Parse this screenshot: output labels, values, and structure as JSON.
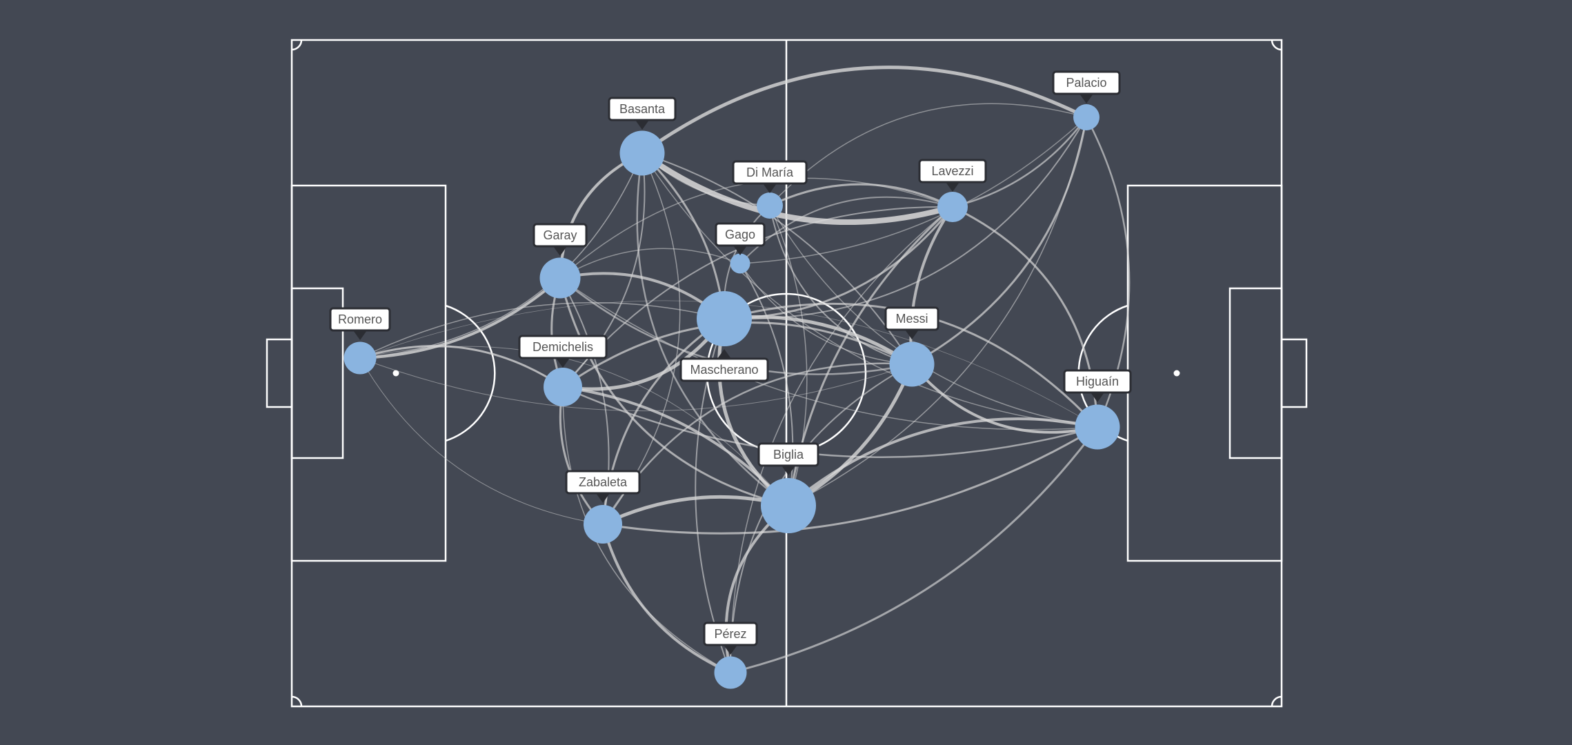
{
  "colors": {
    "background": "#434853",
    "pitch_lines": "#ffffff",
    "node_fill": "#8ab4e0",
    "link_stroke": "#d9d9d9",
    "label_border": "#2b2d33",
    "label_text": "#555555"
  },
  "players": [
    {
      "id": "romero",
      "name": "Romero",
      "importance": 0.45
    },
    {
      "id": "basanta",
      "name": "Basanta",
      "importance": 0.75
    },
    {
      "id": "garay",
      "name": "Garay",
      "importance": 0.65
    },
    {
      "id": "demichelis",
      "name": "Demichelis",
      "importance": 0.6
    },
    {
      "id": "zabaleta",
      "name": "Zabaleta",
      "importance": 0.6
    },
    {
      "id": "mascherano",
      "name": "Mascherano",
      "importance": 1.0
    },
    {
      "id": "gago",
      "name": "Gago",
      "importance": 0.15
    },
    {
      "id": "dimaria",
      "name": "Di María",
      "importance": 0.3
    },
    {
      "id": "biglia",
      "name": "Biglia",
      "importance": 1.0
    },
    {
      "id": "perez",
      "name": "Pérez",
      "importance": 0.45
    },
    {
      "id": "messi",
      "name": "Messi",
      "importance": 0.75
    },
    {
      "id": "lavezzi",
      "name": "Lavezzi",
      "importance": 0.4
    },
    {
      "id": "palacio",
      "name": "Palacio",
      "importance": 0.3
    },
    {
      "id": "higuain",
      "name": "Higuaín",
      "importance": 0.75
    }
  ]
}
